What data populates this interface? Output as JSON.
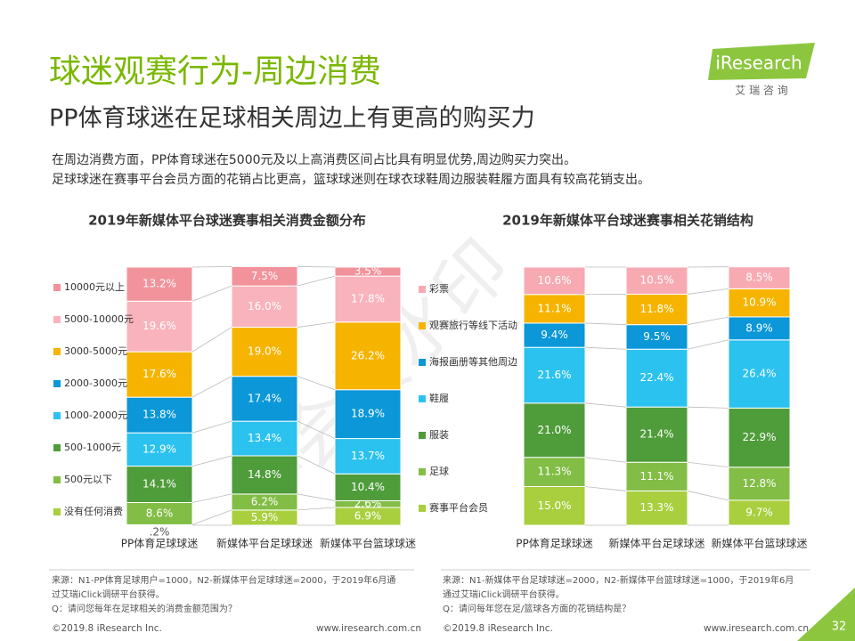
{
  "header": {
    "title": "球迷观赛行为-周边消费",
    "subtitle": "PP体育球迷在足球相关周边上有更高的购买力",
    "description": [
      "在周边消费方面，PP体育球迷在5000元及以上高消费区间占比具有明显优势,周边购买力突出。",
      "足球球迷在赛事平台会员方面的花销占比更高，篮球球迷则在球衣球鞋周边服装鞋履方面具有较高花销支出。"
    ]
  },
  "logo": {
    "name": "iResearch",
    "tagline": "艾 瑞 咨 询"
  },
  "watermark": "非会员水印",
  "chart_data": [
    {
      "type": "bar",
      "stacked": true,
      "title": "2019年新媒体平台球迷赛事相关消费金额分布",
      "categories": [
        "PP体育足球球迷",
        "新媒体平台足球球迷",
        "新媒体平台篮球球迷"
      ],
      "series": [
        {
          "name": "没有任何消费",
          "color": "#a9cf3f",
          "values": [
            0.2,
            5.9,
            6.9
          ],
          "value_labels": [
            ".2%",
            "5.9%",
            "6.9%"
          ]
        },
        {
          "name": "500元以下",
          "color": "#82bd45",
          "values": [
            8.6,
            6.2,
            2.6
          ],
          "value_labels": [
            "8.6%",
            "6.2%",
            "2.6%"
          ]
        },
        {
          "name": "500-1000元",
          "color": "#4f9c3a",
          "values": [
            14.1,
            14.8,
            10.4
          ],
          "value_labels": [
            "14.1%",
            "14.8%",
            "10.4%"
          ]
        },
        {
          "name": "1000-2000元",
          "color": "#2bc2ef",
          "values": [
            12.9,
            13.4,
            13.7
          ],
          "value_labels": [
            "12.9%",
            "13.4%",
            "13.7%"
          ]
        },
        {
          "name": "2000-3000元",
          "color": "#0b97d8",
          "values": [
            13.8,
            17.4,
            18.9
          ],
          "value_labels": [
            "13.8%",
            "17.4%",
            "18.9%"
          ]
        },
        {
          "name": "3000-5000元",
          "color": "#f6b400",
          "values": [
            17.6,
            19.0,
            26.2
          ],
          "value_labels": [
            "17.6%",
            "19.0%",
            "26.2%"
          ]
        },
        {
          "name": "5000-10000元",
          "color": "#f8b3bc",
          "values": [
            19.6,
            16.0,
            17.8
          ],
          "value_labels": [
            "19.6%",
            "16.0%",
            "17.8%"
          ]
        },
        {
          "name": "10000元以上",
          "color": "#f2939c",
          "values": [
            13.2,
            7.5,
            3.5
          ],
          "value_labels": [
            "13.2%",
            "7.5%",
            "3.5%"
          ]
        }
      ]
    },
    {
      "type": "bar",
      "stacked": true,
      "title": "2019年新媒体平台球迷赛事相关花销结构",
      "categories": [
        "PP体育足球球迷",
        "新媒体平台足球球迷",
        "新媒体平台篮球球迷"
      ],
      "series": [
        {
          "name": "赛事平台会员",
          "color": "#a9cf3f",
          "values": [
            15.0,
            13.3,
            9.7
          ],
          "value_labels": [
            "15.0%",
            "13.3%",
            "9.7%"
          ]
        },
        {
          "name": "足球",
          "color": "#82bd45",
          "values": [
            11.3,
            11.1,
            12.8
          ],
          "value_labels": [
            "11.3%",
            "11.1%",
            "12.8%"
          ]
        },
        {
          "name": "服装",
          "color": "#4f9c3a",
          "values": [
            21.0,
            21.4,
            22.9
          ],
          "value_labels": [
            "21.0%",
            "21.4%",
            "22.9%"
          ]
        },
        {
          "name": "鞋履",
          "color": "#2bc2ef",
          "values": [
            21.6,
            22.4,
            26.4
          ],
          "value_labels": [
            "21.6%",
            "22.4%",
            "26.4%"
          ]
        },
        {
          "name": "海报画册等其他周边",
          "color": "#0b97d8",
          "values": [
            9.4,
            9.5,
            8.9
          ],
          "value_labels": [
            "9.4%",
            "9.5%",
            "8.9%"
          ]
        },
        {
          "name": "观赛旅行等线下活动",
          "color": "#f6b400",
          "values": [
            11.1,
            11.8,
            10.9
          ],
          "value_labels": [
            "11.1%",
            "11.8%",
            "10.9%"
          ]
        },
        {
          "name": "彩票",
          "color": "#f8aab3",
          "values": [
            10.6,
            10.5,
            8.5
          ],
          "value_labels": [
            "10.6%",
            "10.5%",
            "8.5%"
          ]
        }
      ]
    }
  ],
  "sources": [
    [
      "来源：N1-PP体育足球用户=1000，N2-新媒体平台足球球迷=2000，于2019年6月通",
      "过艾瑞iClick调研平台获得。",
      "Q：请问您每年在足球相关的消费金额范围为？"
    ],
    [
      "来源：N1-新媒体平台足球球迷=2000，N2-新媒体平台篮球球迷=1000，于2019年6月",
      "通过艾瑞iClick调研平台获得。",
      "Q：请问每年您在足/篮球各方面的花销结构是？"
    ]
  ],
  "footer": {
    "copyright": [
      "©2019.8 iResearch Inc.",
      "©2019.8 iResearch Inc."
    ],
    "url": [
      "www.iresearch.com.cn",
      "www.iresearch.com.cn"
    ],
    "page": "32"
  }
}
